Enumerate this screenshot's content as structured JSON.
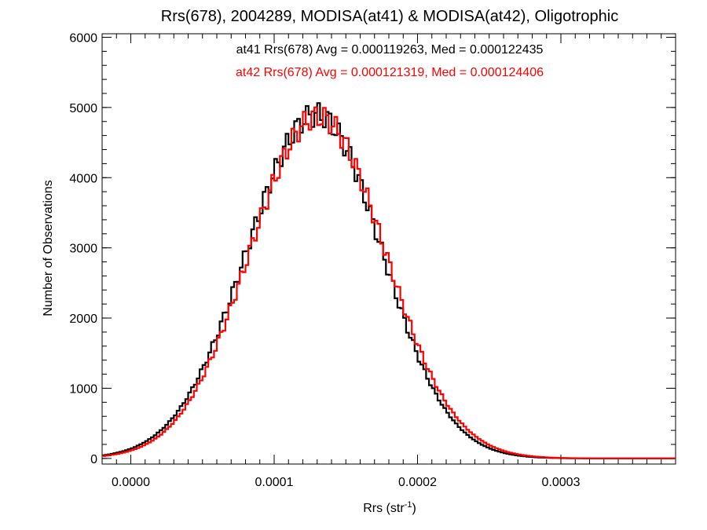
{
  "chart_data": {
    "type": "histogram",
    "title": "Rrs(678), 2004289, MODISA(at41) & MODISA(at42), Oligotrophic",
    "xlabel": {
      "base": "Rrs (str",
      "sup": "-1",
      "close": ")"
    },
    "ylabel": "Number of Observations",
    "xlim": [
      -2e-05,
      0.00038
    ],
    "ylim": [
      -80,
      6050
    ],
    "x_ticks": [
      {
        "value": 0.0,
        "label": "0.0000"
      },
      {
        "value": 0.0001,
        "label": "0.0001"
      },
      {
        "value": 0.0002,
        "label": "0.0002"
      },
      {
        "value": 0.0003,
        "label": "0.0003"
      }
    ],
    "y_ticks": [
      {
        "value": 0,
        "label": "0"
      },
      {
        "value": 1000,
        "label": "1000"
      },
      {
        "value": 2000,
        "label": "2000"
      },
      {
        "value": 3000,
        "label": "3000"
      },
      {
        "value": 4000,
        "label": "4000"
      },
      {
        "value": 5000,
        "label": "5000"
      },
      {
        "value": 6000,
        "label": "6000"
      }
    ],
    "x_minor_step": 1e-05,
    "y_minor_step": 200,
    "annotations": [
      {
        "text": "at41 Rrs(678) Avg = 0.000119263, Med = 0.000122435",
        "color": "#000000"
      },
      {
        "text": "at42 Rrs(678) Avg = 0.000121319, Med = 0.000124406",
        "color": "#ff0000"
      }
    ],
    "series": [
      {
        "color": "#000000",
        "mean": 0.0001295,
        "sigma_left": 4.85e-05,
        "sigma_right": 4.55e-05,
        "peak": 4900
      },
      {
        "color": "#ff0000",
        "mean": 0.0001305,
        "sigma_left": 4.75e-05,
        "sigma_right": 4.7e-05,
        "peak": 4870
      }
    ],
    "bin_width": 2e-06,
    "grid": false,
    "legend": "none"
  }
}
